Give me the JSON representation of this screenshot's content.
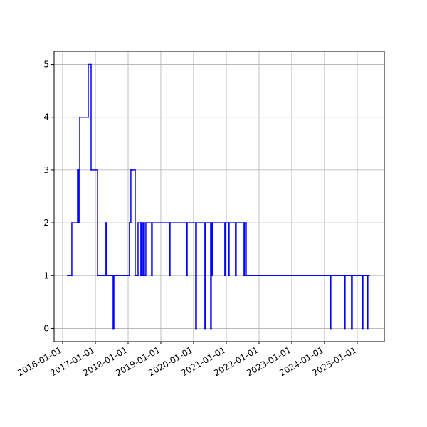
{
  "chart_data": {
    "type": "step",
    "x": [
      "2016-02-26",
      "2016-04-13",
      "2016-06-16",
      "2016-06-28",
      "2016-07-10",
      "2016-10-13",
      "2016-11-14",
      "2017-01-24",
      "2017-04-21",
      "2017-05-03",
      "2017-07-18",
      "2017-07-26",
      "2018-01-16",
      "2018-02-01",
      "2018-03-21",
      "2018-04-22",
      "2018-05-23",
      "2018-05-31",
      "2018-06-16",
      "2018-06-24",
      "2018-07-02",
      "2018-07-18",
      "2018-09-20",
      "2018-09-27",
      "2019-04-06",
      "2019-04-14",
      "2019-10-14",
      "2019-10-22",
      "2020-01-25",
      "2020-02-02",
      "2020-05-07",
      "2020-05-15",
      "2020-07-10",
      "2020-07-17",
      "2020-07-25",
      "2020-08-02",
      "2020-12-15",
      "2020-12-23",
      "2021-01-24",
      "2021-02-01",
      "2021-04-13",
      "2021-04-21",
      "2021-07-18",
      "2021-07-26",
      "2021-08-11",
      "2024-03-04",
      "2024-03-12",
      "2024-08-10",
      "2024-08-18",
      "2024-10-29",
      "2024-11-06",
      "2025-02-25",
      "2025-03-05",
      "2025-04-21",
      "2025-04-29",
      "2025-05-15"
    ],
    "series": [
      {
        "color": "#0000ff",
        "values": [
          1,
          2,
          3,
          2,
          4,
          5,
          3,
          1,
          2,
          1,
          0,
          1,
          2,
          3,
          1,
          2,
          1,
          2,
          1,
          2,
          1,
          2,
          1,
          2,
          1,
          2,
          1,
          2,
          0,
          2,
          0,
          2,
          0,
          2,
          1,
          2,
          1,
          2,
          1,
          2,
          1,
          2,
          1,
          2,
          1,
          0,
          1,
          0,
          1,
          0,
          1,
          0,
          1,
          0,
          1,
          1
        ]
      }
    ],
    "xlim": [
      "2015-09-28",
      "2025-10-30"
    ],
    "xticks": [
      "2016-01-01",
      "2017-01-01",
      "2018-01-01",
      "2019-01-01",
      "2020-01-01",
      "2021-01-01",
      "2022-01-01",
      "2023-01-01",
      "2024-01-01",
      "2025-01-01"
    ],
    "ylim": [
      -0.25,
      5.25
    ],
    "yticks": [
      0,
      1,
      2,
      3,
      4,
      5
    ],
    "grid": true
  }
}
